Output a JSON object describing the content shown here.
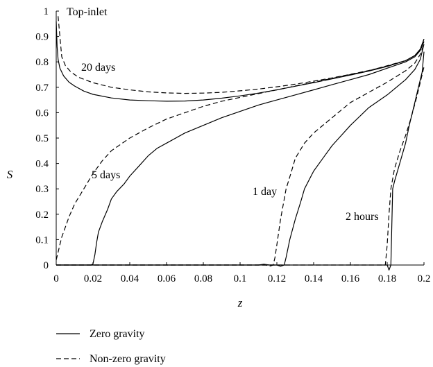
{
  "chart_data": {
    "type": "line",
    "title": "",
    "xlabel": "z",
    "ylabel": "S",
    "xlim": [
      0,
      0.2
    ],
    "ylim": [
      0,
      1
    ],
    "x_ticks": [
      "0",
      "0.02",
      "0.04",
      "0.06",
      "0.08",
      "0.1",
      "0.12",
      "0.14",
      "0.16",
      "0.18",
      "0.2"
    ],
    "y_ticks": [
      "0",
      "0.1",
      "0.2",
      "0.3",
      "0.4",
      "0.5",
      "0.6",
      "0.7",
      "0.8",
      "0.9",
      "1"
    ],
    "grid": false,
    "legend_position": "bottom-left",
    "legend": [
      {
        "label": "Zero gravity",
        "style": "solid"
      },
      {
        "label": "Non-zero gravity",
        "style": "dashed"
      }
    ],
    "annotations": [
      "Top-inlet",
      "20 days",
      "5 days",
      "1 day",
      "2 hours"
    ],
    "series": [
      {
        "group": "20 days",
        "style": "solid",
        "color": "#000000",
        "points": [
          [
            0,
            0.96
          ],
          [
            0.0005,
            0.86
          ],
          [
            0.001,
            0.81
          ],
          [
            0.002,
            0.775
          ],
          [
            0.004,
            0.745
          ],
          [
            0.007,
            0.72
          ],
          [
            0.01,
            0.705
          ],
          [
            0.015,
            0.685
          ],
          [
            0.02,
            0.672
          ],
          [
            0.03,
            0.658
          ],
          [
            0.04,
            0.65
          ],
          [
            0.05,
            0.647
          ],
          [
            0.06,
            0.645
          ],
          [
            0.07,
            0.646
          ],
          [
            0.08,
            0.65
          ],
          [
            0.09,
            0.657
          ],
          [
            0.1,
            0.666
          ],
          [
            0.11,
            0.677
          ],
          [
            0.12,
            0.69
          ],
          [
            0.13,
            0.704
          ],
          [
            0.14,
            0.718
          ],
          [
            0.15,
            0.733
          ],
          [
            0.16,
            0.748
          ],
          [
            0.17,
            0.764
          ],
          [
            0.18,
            0.782
          ],
          [
            0.19,
            0.805
          ],
          [
            0.195,
            0.825
          ],
          [
            0.198,
            0.85
          ],
          [
            0.2,
            0.89
          ]
        ]
      },
      {
        "group": "20 days",
        "style": "dashed",
        "color": "#000000",
        "points": [
          [
            0.001,
            0.98
          ],
          [
            0.002,
            0.9
          ],
          [
            0.003,
            0.82
          ],
          [
            0.005,
            0.785
          ],
          [
            0.008,
            0.76
          ],
          [
            0.012,
            0.74
          ],
          [
            0.02,
            0.718
          ],
          [
            0.03,
            0.7
          ],
          [
            0.04,
            0.69
          ],
          [
            0.05,
            0.682
          ],
          [
            0.06,
            0.678
          ],
          [
            0.07,
            0.676
          ],
          [
            0.08,
            0.677
          ],
          [
            0.09,
            0.68
          ],
          [
            0.1,
            0.686
          ],
          [
            0.11,
            0.693
          ],
          [
            0.12,
            0.702
          ],
          [
            0.13,
            0.712
          ],
          [
            0.14,
            0.724
          ],
          [
            0.15,
            0.737
          ],
          [
            0.16,
            0.751
          ],
          [
            0.17,
            0.766
          ],
          [
            0.18,
            0.783
          ],
          [
            0.19,
            0.805
          ],
          [
            0.195,
            0.825
          ],
          [
            0.198,
            0.85
          ],
          [
            0.2,
            0.89
          ]
        ]
      },
      {
        "group": "5 days",
        "style": "solid",
        "color": "#000000",
        "points": [
          [
            0,
            0
          ],
          [
            0.019,
            0
          ],
          [
            0.02,
            0.005
          ],
          [
            0.021,
            0.04
          ],
          [
            0.022,
            0.09
          ],
          [
            0.023,
            0.13
          ],
          [
            0.025,
            0.17
          ],
          [
            0.028,
            0.22
          ],
          [
            0.03,
            0.26
          ],
          [
            0.033,
            0.29
          ],
          [
            0.037,
            0.32
          ],
          [
            0.04,
            0.35
          ],
          [
            0.045,
            0.39
          ],
          [
            0.05,
            0.43
          ],
          [
            0.055,
            0.46
          ],
          [
            0.06,
            0.48
          ],
          [
            0.07,
            0.52
          ],
          [
            0.08,
            0.55
          ],
          [
            0.09,
            0.58
          ],
          [
            0.1,
            0.605
          ],
          [
            0.11,
            0.63
          ],
          [
            0.12,
            0.65
          ],
          [
            0.13,
            0.67
          ],
          [
            0.14,
            0.69
          ],
          [
            0.15,
            0.71
          ],
          [
            0.16,
            0.73
          ],
          [
            0.17,
            0.75
          ],
          [
            0.18,
            0.775
          ],
          [
            0.19,
            0.8
          ],
          [
            0.195,
            0.82
          ],
          [
            0.198,
            0.845
          ],
          [
            0.2,
            0.88
          ]
        ]
      },
      {
        "group": "5 days",
        "style": "dashed",
        "color": "#000000",
        "points": [
          [
            0,
            0.02
          ],
          [
            0.001,
            0.05
          ],
          [
            0.002,
            0.08
          ],
          [
            0.003,
            0.11
          ],
          [
            0.005,
            0.15
          ],
          [
            0.007,
            0.19
          ],
          [
            0.01,
            0.24
          ],
          [
            0.015,
            0.3
          ],
          [
            0.02,
            0.36
          ],
          [
            0.025,
            0.41
          ],
          [
            0.03,
            0.45
          ],
          [
            0.04,
            0.5
          ],
          [
            0.05,
            0.54
          ],
          [
            0.06,
            0.575
          ],
          [
            0.07,
            0.6
          ],
          [
            0.08,
            0.625
          ],
          [
            0.09,
            0.645
          ],
          [
            0.1,
            0.66
          ],
          [
            0.11,
            0.675
          ],
          [
            0.12,
            0.69
          ],
          [
            0.13,
            0.705
          ],
          [
            0.14,
            0.72
          ],
          [
            0.15,
            0.735
          ],
          [
            0.16,
            0.75
          ],
          [
            0.17,
            0.765
          ],
          [
            0.18,
            0.785
          ],
          [
            0.19,
            0.805
          ],
          [
            0.195,
            0.825
          ],
          [
            0.198,
            0.85
          ],
          [
            0.2,
            0.88
          ]
        ]
      },
      {
        "group": "1 day",
        "style": "solid",
        "color": "#000000",
        "points": [
          [
            0,
            0
          ],
          [
            0.11,
            0
          ],
          [
            0.113,
            0.003
          ],
          [
            0.116,
            0
          ],
          [
            0.12,
            0
          ],
          [
            0.122,
            -0.005
          ],
          [
            0.124,
            0
          ],
          [
            0.125,
            0.03
          ],
          [
            0.127,
            0.1
          ],
          [
            0.13,
            0.18
          ],
          [
            0.133,
            0.25
          ],
          [
            0.135,
            0.3
          ],
          [
            0.14,
            0.37
          ],
          [
            0.145,
            0.42
          ],
          [
            0.15,
            0.47
          ],
          [
            0.16,
            0.55
          ],
          [
            0.17,
            0.62
          ],
          [
            0.18,
            0.67
          ],
          [
            0.19,
            0.73
          ],
          [
            0.195,
            0.77
          ],
          [
            0.198,
            0.81
          ],
          [
            0.2,
            0.87
          ]
        ]
      },
      {
        "group": "1 day",
        "style": "dashed",
        "color": "#000000",
        "points": [
          [
            0,
            0
          ],
          [
            0.114,
            0
          ],
          [
            0.116,
            -0.005
          ],
          [
            0.118,
            0
          ],
          [
            0.119,
            0.03
          ],
          [
            0.12,
            0.08
          ],
          [
            0.122,
            0.18
          ],
          [
            0.125,
            0.3
          ],
          [
            0.128,
            0.37
          ],
          [
            0.13,
            0.42
          ],
          [
            0.135,
            0.48
          ],
          [
            0.14,
            0.52
          ],
          [
            0.15,
            0.58
          ],
          [
            0.16,
            0.64
          ],
          [
            0.17,
            0.68
          ],
          [
            0.18,
            0.72
          ],
          [
            0.19,
            0.765
          ],
          [
            0.195,
            0.795
          ],
          [
            0.198,
            0.83
          ],
          [
            0.2,
            0.87
          ]
        ]
      },
      {
        "group": "2 hours",
        "style": "solid",
        "color": "#000000",
        "points": [
          [
            0,
            0
          ],
          [
            0.18,
            0
          ],
          [
            0.181,
            -0.02
          ],
          [
            0.182,
            0
          ],
          [
            0.1825,
            0.15
          ],
          [
            0.183,
            0.3
          ],
          [
            0.184,
            0.33
          ],
          [
            0.186,
            0.38
          ],
          [
            0.188,
            0.43
          ],
          [
            0.19,
            0.48
          ],
          [
            0.192,
            0.55
          ],
          [
            0.195,
            0.64
          ],
          [
            0.197,
            0.7
          ],
          [
            0.199,
            0.76
          ],
          [
            0.2,
            0.84
          ]
        ]
      },
      {
        "group": "2 hours",
        "style": "dashed",
        "color": "#000000",
        "points": [
          [
            0,
            0
          ],
          [
            0.178,
            0
          ],
          [
            0.179,
            0
          ],
          [
            0.18,
            0.08
          ],
          [
            0.181,
            0.2
          ],
          [
            0.182,
            0.3
          ],
          [
            0.184,
            0.38
          ],
          [
            0.187,
            0.45
          ],
          [
            0.19,
            0.51
          ],
          [
            0.193,
            0.58
          ],
          [
            0.196,
            0.66
          ],
          [
            0.198,
            0.72
          ],
          [
            0.2,
            0.78
          ]
        ]
      }
    ]
  }
}
